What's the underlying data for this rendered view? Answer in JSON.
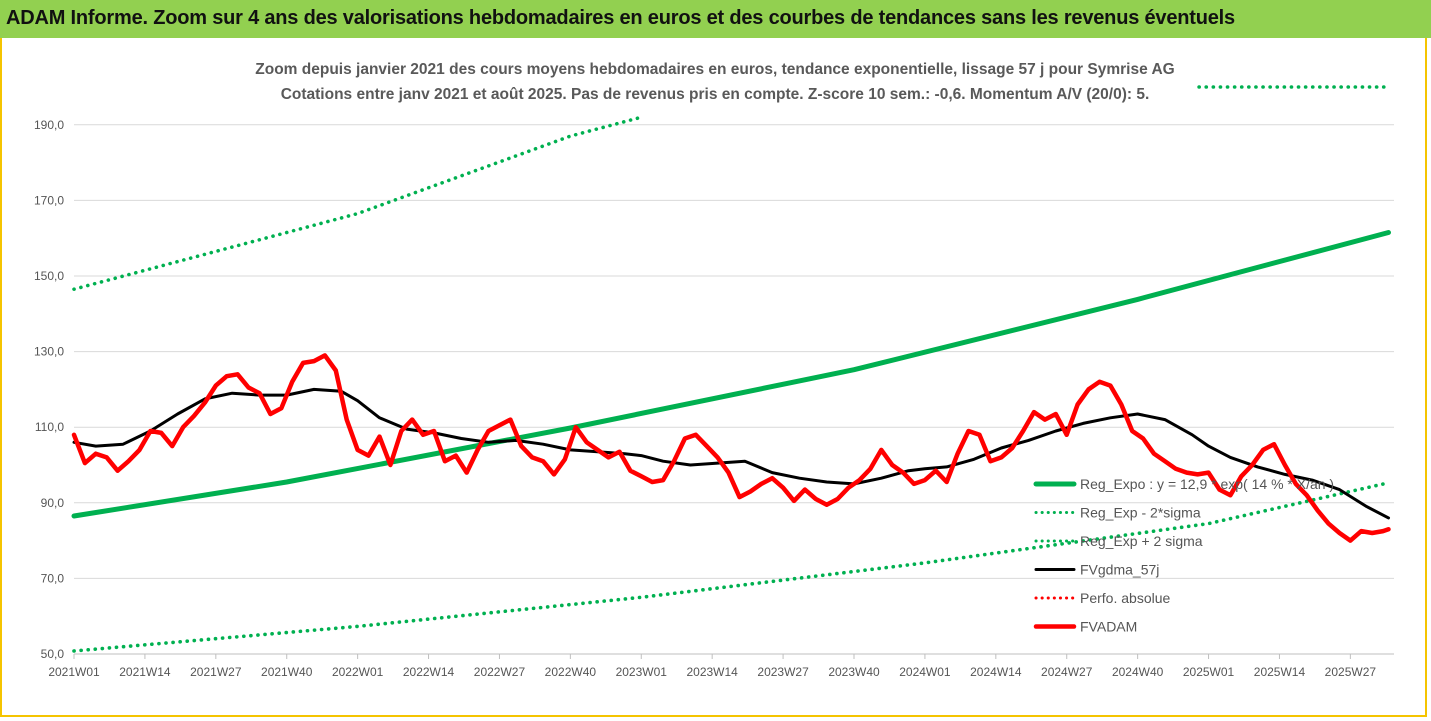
{
  "banner": {
    "title": "ADAM Informe. Zoom sur 4 ans des valorisations hebdomadaires en euros et des courbes de tendances sans les revenus éventuels"
  },
  "chart_data": {
    "type": "line",
    "title": "Zoom depuis janvier 2021 des cours moyens hebdomadaires en euros, tendance exponentielle, lissage 57 j pour Symrise AG",
    "subtitle": "Cotations entre janv 2021 et août 2025.  Pas de revenus pris en compte. Z-score 10 sem.: -0,6. Momentum A/V (20/0): 5.",
    "xlabel": "",
    "ylabel": "",
    "ylim": [
      50,
      200
    ],
    "yticks": [
      "50,0",
      "70,0",
      "90,0",
      "110,0",
      "130,0",
      "150,0",
      "170,0",
      "190,0"
    ],
    "xticks": [
      "2021W01",
      "2021W14",
      "2021W27",
      "2021W40",
      "2022W01",
      "2022W14",
      "2022W27",
      "2022W40",
      "2023W01",
      "2023W14",
      "2023W27",
      "2023W40",
      "2024W01",
      "2024W14",
      "2024W27",
      "2024W40",
      "2025W01",
      "2025W14",
      "2025W27"
    ],
    "grid": true,
    "legend_position": "bottom-right",
    "series": [
      {
        "name": "Reg_Expo : y = 12,9 * exp( 14 % * X/an )",
        "color": "#00b050",
        "style": "solid",
        "x": [
          "2021W01",
          "2021W40",
          "2022W40",
          "2023W40",
          "2024W40",
          "2025W34"
        ],
        "values": [
          86.5,
          95.5,
          109.8,
          125.2,
          143.8,
          161.5
        ]
      },
      {
        "name": "Reg_Exp - 2*sigma",
        "color": "#00b050",
        "style": "dotted",
        "x": [
          "2021W01",
          "2022W01",
          "2023W01",
          "2024W01",
          "2025W01",
          "2025W34"
        ],
        "values": [
          50.8,
          57.3,
          65.0,
          74.1,
          84.5,
          95.3
        ]
      },
      {
        "name": "Reg_Exp + 2 sigma",
        "color": "#00b050",
        "style": "dotted",
        "x": [
          "2021W01",
          "2022W01",
          "2022W40",
          "2023W01"
        ],
        "values": [
          146.5,
          166.5,
          187.0,
          192.0
        ]
      },
      {
        "name": "FVgdma_57j",
        "color": "#000000",
        "style": "solid",
        "x": [
          "2021W01",
          "2021W05",
          "2021W10",
          "2021W15",
          "2021W20",
          "2021W25",
          "2021W30",
          "2021W35",
          "2021W40",
          "2021W45",
          "2021W50",
          "2022W01",
          "2022W05",
          "2022W10",
          "2022W15",
          "2022W20",
          "2022W25",
          "2022W30",
          "2022W35",
          "2022W40",
          "2022W45",
          "2022W50",
          "2023W01",
          "2023W05",
          "2023W10",
          "2023W15",
          "2023W20",
          "2023W25",
          "2023W30",
          "2023W35",
          "2023W40",
          "2023W45",
          "2023W50",
          "2024W01",
          "2024W05",
          "2024W10",
          "2024W15",
          "2024W20",
          "2024W25",
          "2024W30",
          "2024W35",
          "2024W40",
          "2024W45",
          "2024W50",
          "2025W01",
          "2025W05",
          "2025W10",
          "2025W15",
          "2025W20",
          "2025W25",
          "2025W30",
          "2025W34"
        ],
        "values": [
          106.0,
          105.0,
          105.5,
          109.0,
          113.5,
          117.5,
          119.0,
          118.5,
          118.5,
          120.0,
          119.5,
          117.0,
          112.5,
          109.5,
          108.5,
          107.0,
          106.0,
          106.5,
          105.5,
          104.0,
          103.5,
          103.0,
          102.5,
          101.0,
          100.0,
          100.5,
          101.0,
          98.0,
          96.5,
          95.5,
          95.0,
          96.5,
          98.5,
          99.0,
          99.5,
          101.5,
          104.5,
          106.5,
          109.0,
          111.0,
          112.5,
          113.5,
          112.0,
          108.0,
          105.0,
          102.0,
          99.5,
          97.5,
          96.0,
          93.5,
          89.0,
          86.0
        ]
      },
      {
        "name": "Perfo. absolue",
        "color": "#ff0000",
        "style": "dotted",
        "x": [],
        "values": []
      },
      {
        "name": "FVADAM",
        "color": "#ff0000",
        "style": "solid",
        "x": [
          "2021W01",
          "2021W03",
          "2021W05",
          "2021W07",
          "2021W09",
          "2021W11",
          "2021W13",
          "2021W15",
          "2021W17",
          "2021W19",
          "2021W21",
          "2021W23",
          "2021W25",
          "2021W27",
          "2021W29",
          "2021W31",
          "2021W33",
          "2021W35",
          "2021W37",
          "2021W39",
          "2021W41",
          "2021W43",
          "2021W45",
          "2021W47",
          "2021W49",
          "2021W51",
          "2022W01",
          "2022W03",
          "2022W05",
          "2022W07",
          "2022W09",
          "2022W11",
          "2022W13",
          "2022W15",
          "2022W17",
          "2022W19",
          "2022W21",
          "2022W23",
          "2022W25",
          "2022W27",
          "2022W29",
          "2022W31",
          "2022W33",
          "2022W35",
          "2022W37",
          "2022W39",
          "2022W41",
          "2022W43",
          "2022W45",
          "2022W47",
          "2022W49",
          "2022W51",
          "2023W01",
          "2023W03",
          "2023W05",
          "2023W07",
          "2023W09",
          "2023W11",
          "2023W13",
          "2023W15",
          "2023W17",
          "2023W19",
          "2023W21",
          "2023W23",
          "2023W25",
          "2023W27",
          "2023W29",
          "2023W31",
          "2023W33",
          "2023W35",
          "2023W37",
          "2023W39",
          "2023W41",
          "2023W43",
          "2023W45",
          "2023W47",
          "2023W49",
          "2023W51",
          "2024W01",
          "2024W03",
          "2024W05",
          "2024W07",
          "2024W09",
          "2024W11",
          "2024W13",
          "2024W15",
          "2024W17",
          "2024W19",
          "2024W21",
          "2024W23",
          "2024W25",
          "2024W27",
          "2024W29",
          "2024W31",
          "2024W33",
          "2024W35",
          "2024W37",
          "2024W39",
          "2024W41",
          "2024W43",
          "2024W45",
          "2024W47",
          "2024W49",
          "2024W51",
          "2025W01",
          "2025W03",
          "2025W05",
          "2025W07",
          "2025W09",
          "2025W11",
          "2025W13",
          "2025W15",
          "2025W17",
          "2025W19",
          "2025W21",
          "2025W23",
          "2025W25",
          "2025W27",
          "2025W29",
          "2025W31",
          "2025W33",
          "2025W34"
        ],
        "values": [
          108.0,
          100.5,
          103.0,
          102.0,
          98.5,
          101.0,
          104.0,
          109.0,
          108.5,
          105.0,
          110.0,
          113.0,
          116.5,
          121.0,
          123.5,
          124.0,
          120.5,
          119.0,
          113.5,
          115.0,
          122.0,
          127.0,
          127.5,
          129.0,
          125.0,
          112.0,
          104.0,
          102.5,
          107.5,
          100.0,
          109.0,
          112.0,
          108.0,
          109.0,
          101.0,
          102.5,
          98.0,
          104.0,
          109.0,
          110.5,
          112.0,
          105.0,
          102.0,
          101.0,
          97.5,
          101.5,
          110.0,
          106.0,
          104.0,
          102.0,
          103.5,
          98.5,
          97.0,
          95.5,
          96.0,
          101.0,
          107.0,
          108.0,
          105.0,
          102.0,
          98.0,
          91.5,
          93.0,
          95.0,
          96.5,
          94.0,
          90.5,
          93.5,
          91.0,
          89.5,
          91.0,
          94.0,
          96.0,
          99.0,
          104.0,
          100.0,
          98.0,
          95.0,
          96.0,
          98.5,
          95.5,
          103.0,
          109.0,
          108.0,
          101.0,
          102.0,
          104.5,
          109.0,
          114.0,
          112.0,
          113.5,
          108.0,
          116.0,
          120.0,
          122.0,
          121.0,
          116.0,
          109.0,
          107.0,
          103.0,
          101.0,
          99.0,
          98.0,
          97.5,
          98.0,
          93.5,
          92.0,
          97.0,
          100.0,
          104.0,
          105.5,
          100.0,
          95.0,
          92.0,
          88.0,
          84.5,
          82.0,
          80.0,
          82.5,
          82.0,
          82.5,
          83.0
        ]
      }
    ]
  }
}
